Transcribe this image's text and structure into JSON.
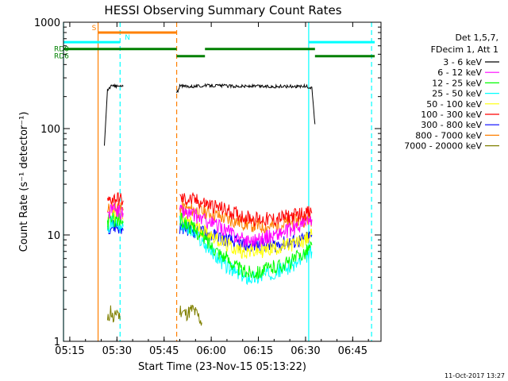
{
  "chart_data": {
    "type": "line",
    "title": "HESSI Observing Summary Count Rates",
    "xlabel": "Start Time (23-Nov-15 05:13:22)",
    "ylabel": "Count Rate (s⁻¹ detector⁻¹)",
    "yscale": "log",
    "ylim": [
      1,
      1000
    ],
    "xlim": [
      "05:13",
      "06:54"
    ],
    "x_ticks": [
      "05:15",
      "05:30",
      "05:45",
      "06:00",
      "06:15",
      "06:30",
      "06:45"
    ],
    "y_ticks": [
      "1",
      "10",
      "100",
      "1000"
    ],
    "grid": false,
    "legend_position": "right",
    "legend_header": [
      "Det 1,5,7,",
      "FDecim 1, Att 1"
    ],
    "series": [
      {
        "name": "3 - 6 keV",
        "color": "#000000",
        "segments": [
          {
            "x": [
              "05:26",
              "05:27",
              "05:28",
              "05:29",
              "05:30",
              "05:31",
              "05:32"
            ],
            "y": [
              70,
              230,
              250,
              250,
              250,
              250,
              250
            ]
          },
          {
            "x": [
              "05:49",
              "05:50",
              "05:55",
              "06:00",
              "06:05",
              "06:10",
              "06:15",
              "06:20",
              "06:25",
              "06:30",
              "06:32",
              "06:33"
            ],
            "y": [
              215,
              250,
              250,
              255,
              252,
              250,
              250,
              248,
              250,
              250,
              240,
              110
            ]
          }
        ]
      },
      {
        "name": "6 - 12 keV",
        "color": "#ff00ff",
        "segments": [
          {
            "x": [
              "05:27",
              "05:28",
              "05:30",
              "05:32"
            ],
            "y": [
              15,
              17,
              17,
              16
            ]
          },
          {
            "x": [
              "05:50",
              "05:55",
              "06:00",
              "06:05",
              "06:10",
              "06:15",
              "06:20",
              "06:25",
              "06:30",
              "06:32"
            ],
            "y": [
              17,
              15,
              13,
              11,
              9,
              9,
              10,
              11,
              13,
              14
            ]
          }
        ]
      },
      {
        "name": "12 - 25 keV",
        "color": "#00ff00",
        "segments": [
          {
            "x": [
              "05:27",
              "05:28",
              "05:30",
              "05:32"
            ],
            "y": [
              13,
              14,
              14,
              13
            ]
          },
          {
            "x": [
              "05:50",
              "05:55",
              "06:00",
              "06:05",
              "06:10",
              "06:15",
              "06:20",
              "06:25",
              "06:30",
              "06:32"
            ],
            "y": [
              14,
              11,
              8,
              6,
              4.5,
              4.5,
              5,
              5.5,
              7,
              8
            ]
          }
        ]
      },
      {
        "name": "25 - 50 keV",
        "color": "#00ffff",
        "segments": [
          {
            "x": [
              "05:27",
              "05:28",
              "05:30",
              "05:32"
            ],
            "y": [
              12,
              13,
              13,
              12
            ]
          },
          {
            "x": [
              "05:50",
              "05:55",
              "06:00",
              "06:05",
              "06:10",
              "06:15",
              "06:20",
              "06:25",
              "06:30",
              "06:32"
            ],
            "y": [
              13,
              10,
              7,
              5,
              4,
              4,
              4.5,
              5,
              6,
              7
            ]
          }
        ]
      },
      {
        "name": "50 - 100 keV",
        "color": "#ffff00",
        "segments": [
          {
            "x": [
              "05:27",
              "05:28",
              "05:30",
              "05:32"
            ],
            "y": [
              14,
              15,
              15,
              14
            ]
          },
          {
            "x": [
              "05:50",
              "05:55",
              "06:00",
              "06:05",
              "06:10",
              "06:15",
              "06:20",
              "06:25",
              "06:30",
              "06:32"
            ],
            "y": [
              15,
              12,
              10,
              8,
              7,
              7,
              7.5,
              8,
              9,
              10
            ]
          }
        ]
      },
      {
        "name": "100 - 300 keV",
        "color": "#ff0000",
        "segments": [
          {
            "x": [
              "05:27",
              "05:28",
              "05:30",
              "05:32"
            ],
            "y": [
              20,
              22,
              22,
              21
            ]
          },
          {
            "x": [
              "05:50",
              "05:55",
              "06:00",
              "06:05",
              "06:10",
              "06:15",
              "06:20",
              "06:25",
              "06:30",
              "06:32"
            ],
            "y": [
              22,
              21,
              19,
              17,
              15,
              14,
              14,
              15,
              16,
              16
            ]
          }
        ]
      },
      {
        "name": "300 - 800 keV",
        "color": "#0000ff",
        "segments": [
          {
            "x": [
              "05:27",
              "05:28",
              "05:30",
              "05:32"
            ],
            "y": [
              12,
              12,
              12,
              11
            ]
          },
          {
            "x": [
              "05:50",
              "05:55",
              "06:00",
              "06:05",
              "06:10",
              "06:15",
              "06:20",
              "06:25",
              "06:30",
              "06:32"
            ],
            "y": [
              12,
              11,
              10,
              9,
              8,
              8,
              8,
              8.5,
              9,
              10
            ]
          }
        ]
      },
      {
        "name": "800 - 7000 keV",
        "color": "#ff8000",
        "segments": [
          {
            "x": [
              "05:27",
              "05:28",
              "05:30",
              "05:32"
            ],
            "y": [
              17,
              18,
              18,
              17
            ]
          },
          {
            "x": [
              "05:50",
              "05:55",
              "06:00",
              "06:05",
              "06:10",
              "06:15",
              "06:20",
              "06:25",
              "06:30",
              "06:32"
            ],
            "y": [
              18,
              17,
              16,
              14,
              13,
              12,
              12,
              13,
              14,
              14
            ]
          }
        ]
      },
      {
        "name": "7000 - 20000 keV",
        "color": "#808000",
        "segments": [
          {
            "x": [
              "05:27",
              "05:28",
              "05:29",
              "05:30",
              "05:31"
            ],
            "y": [
              1.5,
              2,
              1.5,
              2,
              1.6
            ]
          },
          {
            "x": [
              "05:50",
              "05:52",
              "05:54",
              "05:56",
              "05:57"
            ],
            "y": [
              2,
              1.8,
              2,
              1.7,
              1.5
            ]
          }
        ]
      }
    ],
    "flags": [
      {
        "label": "S",
        "color": "#ff8000",
        "y": 800,
        "from": "05:24",
        "to": "05:49"
      },
      {
        "label": "N",
        "color": "#00ffff",
        "y": 650,
        "from": "05:13",
        "to": "05:31"
      },
      {
        "label": "",
        "color": "#00ffff",
        "y": 650,
        "from": "06:31",
        "to": "06:52"
      },
      {
        "label": "RD0",
        "color": "#008000",
        "y": 560,
        "from": "05:13",
        "to": "05:49"
      },
      {
        "label": "",
        "color": "#008000",
        "y": 560,
        "from": "05:58",
        "to": "06:33"
      },
      {
        "label": "RD6",
        "color": "#008000",
        "y": 480,
        "from": "05:49",
        "to": "05:58"
      },
      {
        "label": "",
        "color": "#008000",
        "y": 480,
        "from": "06:33",
        "to": "06:52"
      }
    ],
    "vlines": [
      {
        "x": "05:13",
        "color": "#00ffff",
        "style": "solid"
      },
      {
        "x": "05:24",
        "color": "#ff8000",
        "style": "solid"
      },
      {
        "x": "05:31",
        "color": "#00ffff",
        "style": "dashed"
      },
      {
        "x": "05:49",
        "color": "#ff8000",
        "style": "dashed"
      },
      {
        "x": "06:31",
        "color": "#00ffff",
        "style": "solid"
      },
      {
        "x": "06:51",
        "color": "#00ffff",
        "style": "dashed"
      }
    ]
  },
  "footer_timestamp": "11-Oct-2017 13:27"
}
